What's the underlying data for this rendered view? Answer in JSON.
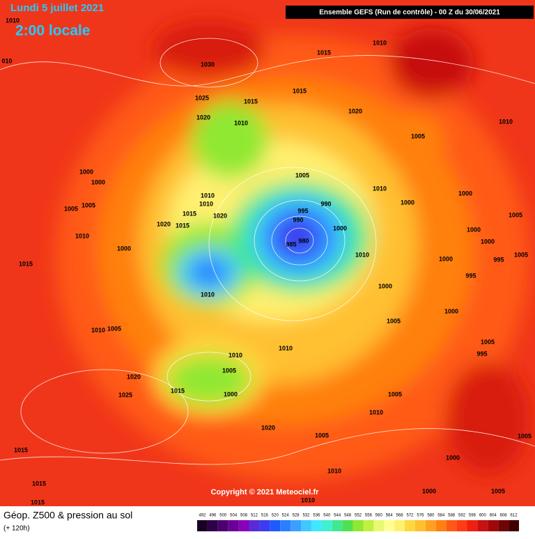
{
  "header": {
    "date": "Lundi 5 juillet 2021",
    "time": "2:00 locale",
    "run": "Ensemble GEFS  (Run de contrôle)  -  00 Z du 30/06/2021"
  },
  "isobar_labels": [
    "1010",
    "010",
    "1030",
    "1015",
    "1010",
    "1015",
    "1025",
    "1015",
    "1020",
    "1020",
    "1010",
    "1010",
    "1005",
    "1000",
    "1000",
    "1005",
    "1010",
    "1000",
    "990",
    "1010",
    "1005",
    "1005",
    "995",
    "1010",
    "1015",
    "1020",
    "1000",
    "1005",
    "990",
    "1000",
    "1020",
    "1015",
    "1000",
    "1000",
    "1010",
    "985",
    "980",
    "1010",
    "1000",
    "1000",
    "995",
    "1005",
    "1015",
    "995",
    "1000",
    "1010",
    "1000",
    "1005",
    "1010",
    "1005",
    "1010",
    "1005",
    "1010",
    "995",
    "1005",
    "1020",
    "1015",
    "1000",
    "1005",
    "1025",
    "1010",
    "1020",
    "1005",
    "1005",
    "1015",
    "1000",
    "1010",
    "1015",
    "1000",
    "1005",
    "1015",
    "1010"
  ],
  "footer": {
    "field": "Géop. Z500 & pression au sol",
    "lead": "(+ 120h)",
    "copyright": "Copyright © 2021 Meteociel.fr"
  },
  "legend": {
    "levels": [
      492,
      496,
      500,
      504,
      508,
      512,
      516,
      520,
      524,
      528,
      532,
      536,
      540,
      544,
      548,
      552,
      556,
      560,
      564,
      568,
      572,
      576,
      580,
      584,
      588,
      592,
      596,
      600,
      604,
      608,
      612
    ],
    "colors": [
      "#1a0026",
      "#2d0047",
      "#4b0070",
      "#6a0096",
      "#8a00b8",
      "#5a2ad6",
      "#3c3cf0",
      "#1e5aff",
      "#2a80ff",
      "#3aa0ff",
      "#40c8ff",
      "#40e8ff",
      "#40f0d0",
      "#40e890",
      "#50e050",
      "#90e830",
      "#c0f040",
      "#e8f870",
      "#ffff90",
      "#fff070",
      "#ffd840",
      "#ffc030",
      "#ffa020",
      "#ff8010",
      "#ff5a14",
      "#ff3c14",
      "#f02010",
      "#c81010",
      "#a00808",
      "#700404",
      "#400000"
    ]
  }
}
